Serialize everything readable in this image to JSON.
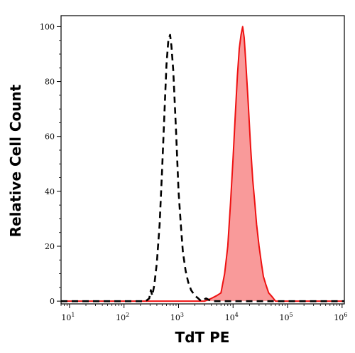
{
  "chart_data": {
    "type": "area",
    "xlabel": "TdT PE",
    "ylabel": "Relative Cell Count",
    "x_scale": "log",
    "xlim": [
      7,
      1100000
    ],
    "ylim": [
      -1,
      104
    ],
    "x_ticks": [
      {
        "base": "10",
        "exp": "1",
        "value": 10
      },
      {
        "base": "10",
        "exp": "2",
        "value": 100
      },
      {
        "base": "10",
        "exp": "3",
        "value": 1000
      },
      {
        "base": "10",
        "exp": "4",
        "value": 10000
      },
      {
        "base": "10",
        "exp": "5",
        "value": 100000
      },
      {
        "base": "10",
        "exp": "6",
        "value": 1000000
      }
    ],
    "y_ticks": [
      "0",
      "20",
      "40",
      "60",
      "80",
      "100"
    ],
    "grid": false,
    "legend": "none",
    "series": [
      {
        "style": "dashed",
        "color": "#000000",
        "fill": "none",
        "points": [
          [
            7,
            0
          ],
          [
            250,
            0
          ],
          [
            290,
            1
          ],
          [
            310,
            4
          ],
          [
            330,
            2
          ],
          [
            360,
            6
          ],
          [
            400,
            14
          ],
          [
            450,
            28
          ],
          [
            500,
            48
          ],
          [
            550,
            68
          ],
          [
            600,
            86
          ],
          [
            650,
            95
          ],
          [
            700,
            97
          ],
          [
            740,
            93
          ],
          [
            800,
            84
          ],
          [
            900,
            62
          ],
          [
            1000,
            40
          ],
          [
            1100,
            28
          ],
          [
            1200,
            18
          ],
          [
            1350,
            11
          ],
          [
            1500,
            7
          ],
          [
            1700,
            4
          ],
          [
            2000,
            2
          ],
          [
            2300,
            1
          ],
          [
            2600,
            0
          ],
          [
            3200,
            1
          ],
          [
            4000,
            0
          ],
          [
            1100000,
            0
          ]
        ]
      },
      {
        "style": "solid",
        "color": "#ee1111",
        "fill": "#f99a9a",
        "points": [
          [
            7,
            0
          ],
          [
            3000,
            0
          ],
          [
            4000,
            1
          ],
          [
            5000,
            2
          ],
          [
            6000,
            3
          ],
          [
            7000,
            10
          ],
          [
            8000,
            20
          ],
          [
            9000,
            36
          ],
          [
            10000,
            52
          ],
          [
            11000,
            68
          ],
          [
            12000,
            82
          ],
          [
            13000,
            92
          ],
          [
            14000,
            97
          ],
          [
            15000,
            100
          ],
          [
            16000,
            96
          ],
          [
            17000,
            88
          ],
          [
            19000,
            72
          ],
          [
            21000,
            56
          ],
          [
            23000,
            44
          ],
          [
            25000,
            36
          ],
          [
            27000,
            28
          ],
          [
            30000,
            20
          ],
          [
            33000,
            14
          ],
          [
            36000,
            9
          ],
          [
            40000,
            6
          ],
          [
            45000,
            3
          ],
          [
            50000,
            2
          ],
          [
            55000,
            1
          ],
          [
            60000,
            0
          ],
          [
            1100000,
            0
          ]
        ]
      }
    ]
  }
}
